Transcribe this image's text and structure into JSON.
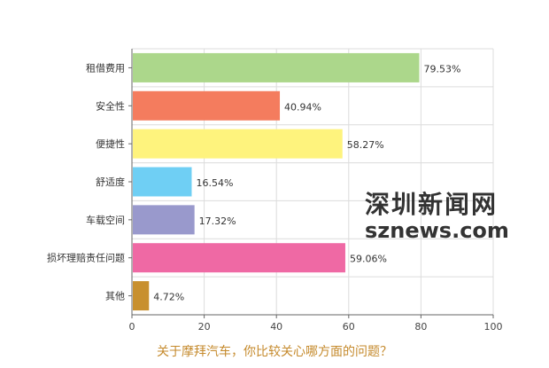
{
  "chart_data": {
    "type": "bar",
    "orientation": "horizontal",
    "categories": [
      "租借费用",
      "安全性",
      "便捷性",
      "舒适度",
      "车载空间",
      "损坏理赔责任问题",
      "其他"
    ],
    "values": [
      79.53,
      40.94,
      58.27,
      16.54,
      17.32,
      59.06,
      4.72
    ],
    "value_labels": [
      "79.53%",
      "40.94%",
      "58.27%",
      "16.54%",
      "17.32%",
      "59.06%",
      "4.72%"
    ],
    "colors": [
      "#acd78b",
      "#f47c5e",
      "#fef37d",
      "#6fcff4",
      "#9999cc",
      "#ef69a4",
      "#c8902e"
    ],
    "x_ticks": [
      "0",
      "20",
      "40",
      "60",
      "80",
      "100"
    ],
    "xlim": [
      0,
      100
    ],
    "grid": true
  },
  "caption": "关于摩拜汽车，你比较关心哪方面的问题？",
  "watermark": {
    "cn": "深圳新闻网",
    "en": "sznews.com"
  }
}
